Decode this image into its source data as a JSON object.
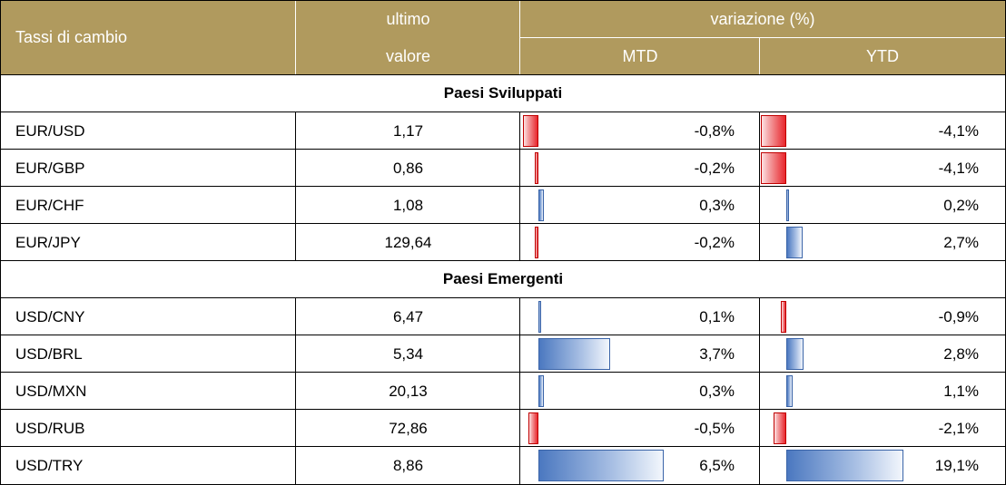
{
  "header": {
    "col1": "Tassi di cambio",
    "col2_line1": "ultimo",
    "col2_line2": "valore",
    "variation": "variazione (%)",
    "mtd": "MTD",
    "ytd": "YTD"
  },
  "chart_data": {
    "type": "table",
    "sections": [
      {
        "title": "Paesi Sviluppati",
        "rows": [
          {
            "pair": "EUR/USD",
            "last": "1,17",
            "mtd": -0.8,
            "mtd_label": "-0,8%",
            "ytd": -4.1,
            "ytd_label": "-4,1%"
          },
          {
            "pair": "EUR/GBP",
            "last": "0,86",
            "mtd": -0.2,
            "mtd_label": "-0,2%",
            "ytd": -4.1,
            "ytd_label": "-4,1%"
          },
          {
            "pair": "EUR/CHF",
            "last": "1,08",
            "mtd": 0.3,
            "mtd_label": "0,3%",
            "ytd": 0.2,
            "ytd_label": "0,2%"
          },
          {
            "pair": "EUR/JPY",
            "last": "129,64",
            "mtd": -0.2,
            "mtd_label": "-0,2%",
            "ytd": 2.7,
            "ytd_label": "2,7%"
          }
        ]
      },
      {
        "title": "Paesi Emergenti",
        "rows": [
          {
            "pair": "USD/CNY",
            "last": "6,47",
            "mtd": 0.1,
            "mtd_label": "0,1%",
            "ytd": -0.9,
            "ytd_label": "-0,9%"
          },
          {
            "pair": "USD/BRL",
            "last": "5,34",
            "mtd": 3.7,
            "mtd_label": "3,7%",
            "ytd": 2.8,
            "ytd_label": "2,8%"
          },
          {
            "pair": "USD/MXN",
            "last": "20,13",
            "mtd": 0.3,
            "mtd_label": "0,3%",
            "ytd": 1.1,
            "ytd_label": "1,1%"
          },
          {
            "pair": "USD/RUB",
            "last": "72,86",
            "mtd": -0.5,
            "mtd_label": "-0,5%",
            "ytd": -2.1,
            "ytd_label": "-2,1%"
          },
          {
            "pair": "USD/TRY",
            "last": "8,86",
            "mtd": 6.5,
            "mtd_label": "6,5%",
            "ytd": 19.1,
            "ytd_label": "19,1%"
          }
        ]
      }
    ],
    "colors": {
      "header": "#b09a5e",
      "negative": "#e8262c",
      "positive": "#4b78c0"
    }
  }
}
